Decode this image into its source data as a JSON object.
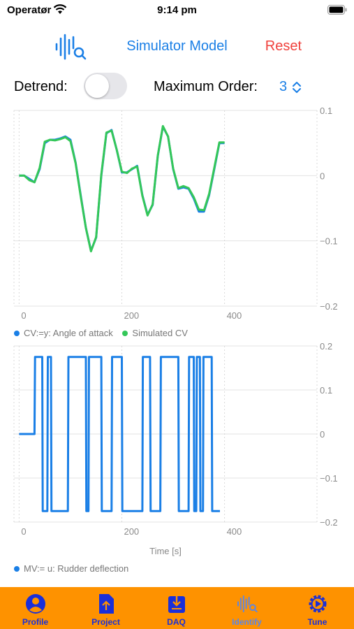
{
  "status_bar": {
    "carrier": "Operatør",
    "time": "9:14 pm"
  },
  "nav": {
    "icon": "waveform-magnifier-icon",
    "title": "Simulator Model",
    "reset_label": "Reset"
  },
  "controls": {
    "detrend_label": "Detrend:",
    "detrend_on": false,
    "max_order_label": "Maximum Order:",
    "max_order_value": "3"
  },
  "colors": {
    "accent": "#1a7fe6",
    "reset": "#f0413c",
    "cv": "#1a7fe6",
    "simulated": "#34c759",
    "tabbar": "#fe9200",
    "tab_label": "#1a2fd9",
    "tab_active": "#5a86e8"
  },
  "chart_data": [
    {
      "type": "line",
      "x": [
        0,
        10,
        20,
        30,
        40,
        50,
        60,
        70,
        80,
        90,
        100,
        110,
        120,
        130,
        140,
        150,
        160,
        170,
        180,
        190,
        200,
        210,
        220,
        230,
        240,
        250,
        260,
        270,
        280,
        290,
        300,
        310,
        320,
        330,
        340,
        350,
        360,
        370,
        380,
        390,
        400
      ],
      "series": [
        {
          "name": "CV:=y: Angle of attack",
          "values": [
            0,
            0,
            -0.005,
            -0.01,
            0.01,
            0.05,
            0.055,
            0.055,
            0.057,
            0.06,
            0.055,
            0.02,
            -0.03,
            -0.08,
            -0.115,
            -0.095,
            0,
            0.065,
            0.07,
            0.04,
            0.005,
            0.005,
            0.01,
            0.015,
            -0.03,
            -0.06,
            -0.045,
            0.03,
            0.075,
            0.06,
            0.01,
            -0.02,
            -0.018,
            -0.02,
            -0.035,
            -0.055,
            -0.055,
            -0.03,
            0.01,
            0.05,
            0.05
          ]
        },
        {
          "name": "Simulated CV",
          "values": [
            0,
            0,
            -0.007,
            -0.01,
            0.012,
            0.052,
            0.055,
            0.054,
            0.056,
            0.059,
            0.053,
            0.019,
            -0.032,
            -0.08,
            -0.116,
            -0.094,
            0.002,
            0.066,
            0.069,
            0.04,
            0.006,
            0.004,
            0.011,
            0.014,
            -0.031,
            -0.061,
            -0.044,
            0.031,
            0.076,
            0.06,
            0.011,
            -0.019,
            -0.016,
            -0.019,
            -0.033,
            -0.052,
            -0.053,
            -0.028,
            0.012,
            0.051,
            0.051
          ]
        }
      ],
      "xlim": [
        -10,
        580
      ],
      "ylim": [
        -0.2,
        0.1
      ],
      "xticks": [
        "0",
        "200",
        "400"
      ],
      "yticks": [
        "0.1",
        "0",
        "−0.1",
        "−0.2"
      ],
      "xlabel": "",
      "ylabel": "",
      "legend": "bottom-left",
      "grid": true
    },
    {
      "type": "line",
      "x": [
        0,
        5,
        6,
        20,
        21,
        30,
        31,
        45,
        46,
        55,
        56,
        62,
        63,
        95,
        96,
        100,
        101,
        110,
        111,
        130,
        131,
        135,
        136,
        160,
        161,
        180,
        181,
        200,
        201,
        240,
        241,
        255,
        256,
        275,
        276,
        310,
        311,
        330,
        331,
        340,
        341,
        345,
        346,
        352,
        353,
        358,
        359,
        375,
        376,
        390,
        391
      ],
      "series": [
        {
          "name": "MV:= u: Rudder deflection",
          "values": [
            0,
            0,
            0,
            0,
            0,
            0,
            0.175,
            0.175,
            -0.175,
            -0.175,
            0.175,
            0.175,
            -0.175,
            -0.175,
            0.175,
            0.175,
            0.175,
            0.175,
            0.175,
            0.175,
            -0.175,
            -0.175,
            0.175,
            0.175,
            -0.175,
            -0.175,
            0.175,
            0.175,
            -0.175,
            -0.175,
            0.175,
            0.175,
            -0.175,
            -0.175,
            0.175,
            0.175,
            -0.175,
            -0.175,
            0.175,
            0.175,
            -0.175,
            -0.175,
            0.175,
            0.175,
            -0.175,
            -0.175,
            0.175,
            0.175,
            -0.175,
            -0.175,
            -0.175
          ]
        }
      ],
      "xlim": [
        -10,
        580
      ],
      "ylim": [
        -0.2,
        0.2
      ],
      "xticks": [
        "0",
        "200",
        "400"
      ],
      "yticks": [
        "0.2",
        "0.1",
        "0",
        "−0.1",
        "−0.2"
      ],
      "xlabel": "Time [s]",
      "ylabel": "",
      "legend": "bottom-left",
      "grid": true
    }
  ],
  "tabs": [
    {
      "label": "Profile",
      "icon": "person-circle-icon",
      "active": false
    },
    {
      "label": "Project",
      "icon": "document-upload-icon",
      "active": false
    },
    {
      "label": "DAQ",
      "icon": "tray-download-icon",
      "active": false
    },
    {
      "label": "Identify",
      "icon": "waveform-magnifier-icon",
      "active": true
    },
    {
      "label": "Tune",
      "icon": "gear-play-icon",
      "active": false
    }
  ]
}
